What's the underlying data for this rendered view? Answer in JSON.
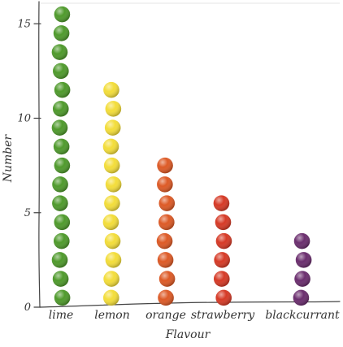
{
  "chart_data": {
    "type": "bar",
    "title": "",
    "xlabel": "Flavour",
    "ylabel": "Number",
    "categories": [
      "lime",
      "lemon",
      "orange",
      "strawberry",
      "blackcurrant"
    ],
    "values": [
      16,
      12,
      8,
      6,
      4
    ],
    "ylim": [
      0,
      16
    ],
    "yticks": [
      0,
      5,
      10,
      15
    ],
    "grid": true,
    "legend": "none",
    "colors": {
      "lime": "#4f9a2c",
      "lemon": "#f3dd3a",
      "orange": "#dd5a26",
      "strawberry": "#d63a26",
      "blackcurrant": "#6b2e6e"
    },
    "mark_style": "stacked-sweets"
  }
}
